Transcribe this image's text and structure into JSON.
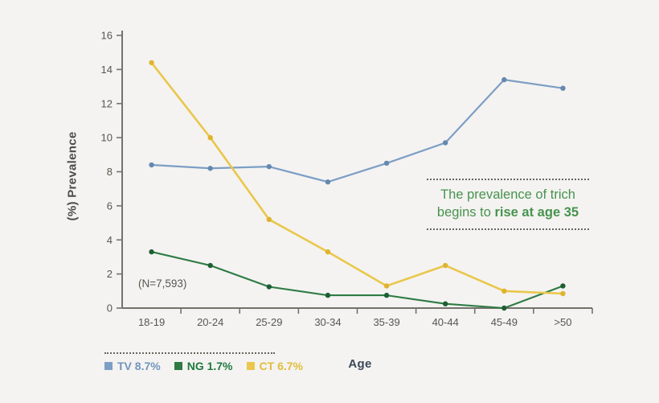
{
  "chart_data": {
    "type": "line",
    "title": "",
    "xlabel": "Age",
    "ylabel": "(%) Prevalence",
    "ylim": [
      0,
      16
    ],
    "yticks": [
      0,
      2,
      4,
      6,
      8,
      10,
      12,
      14,
      16
    ],
    "grid": false,
    "legend_position": "bottom-left",
    "categories": [
      "18-19",
      "20-24",
      "25-29",
      "30-34",
      "35-39",
      "40-44",
      "45-49",
      ">50"
    ],
    "series": [
      {
        "name": "TV",
        "legend_label": "TV 8.7%",
        "color": "#7d9ec5",
        "marker_color": "#6588af",
        "legend_text_color": "#7195bd",
        "line_width": 2.2,
        "values": [
          8.4,
          8.2,
          8.3,
          7.4,
          8.5,
          9.7,
          13.4,
          12.9
        ]
      },
      {
        "name": "NG",
        "legend_label": "NG 1.7%",
        "color": "#2e7b44",
        "marker_color": "#1e5f33",
        "legend_text_color": "#20793e",
        "line_width": 2.1,
        "values": [
          3.3,
          2.5,
          1.25,
          0.75,
          0.75,
          0.25,
          0.0,
          1.3
        ]
      },
      {
        "name": "CT",
        "legend_label": "CT 6.7%",
        "color": "#eac74a",
        "marker_color": "#dfb32f",
        "legend_text_color": "#e2bd39",
        "line_width": 2.6,
        "values": [
          14.4,
          10.0,
          5.2,
          3.3,
          1.3,
          2.5,
          1.0,
          0.85
        ]
      }
    ],
    "sample_size_note": "(N=7,593)",
    "annotation": {
      "line1": "The prevalence of trich",
      "line2_normal": "begins to ",
      "line2_bold": "rise at age 35"
    }
  },
  "colors": {
    "background": "#f4f3f1",
    "axis": "#73726c",
    "tick_text": "#57564f",
    "annotation_green": "#47934e",
    "age_label": "#3d4859"
  }
}
